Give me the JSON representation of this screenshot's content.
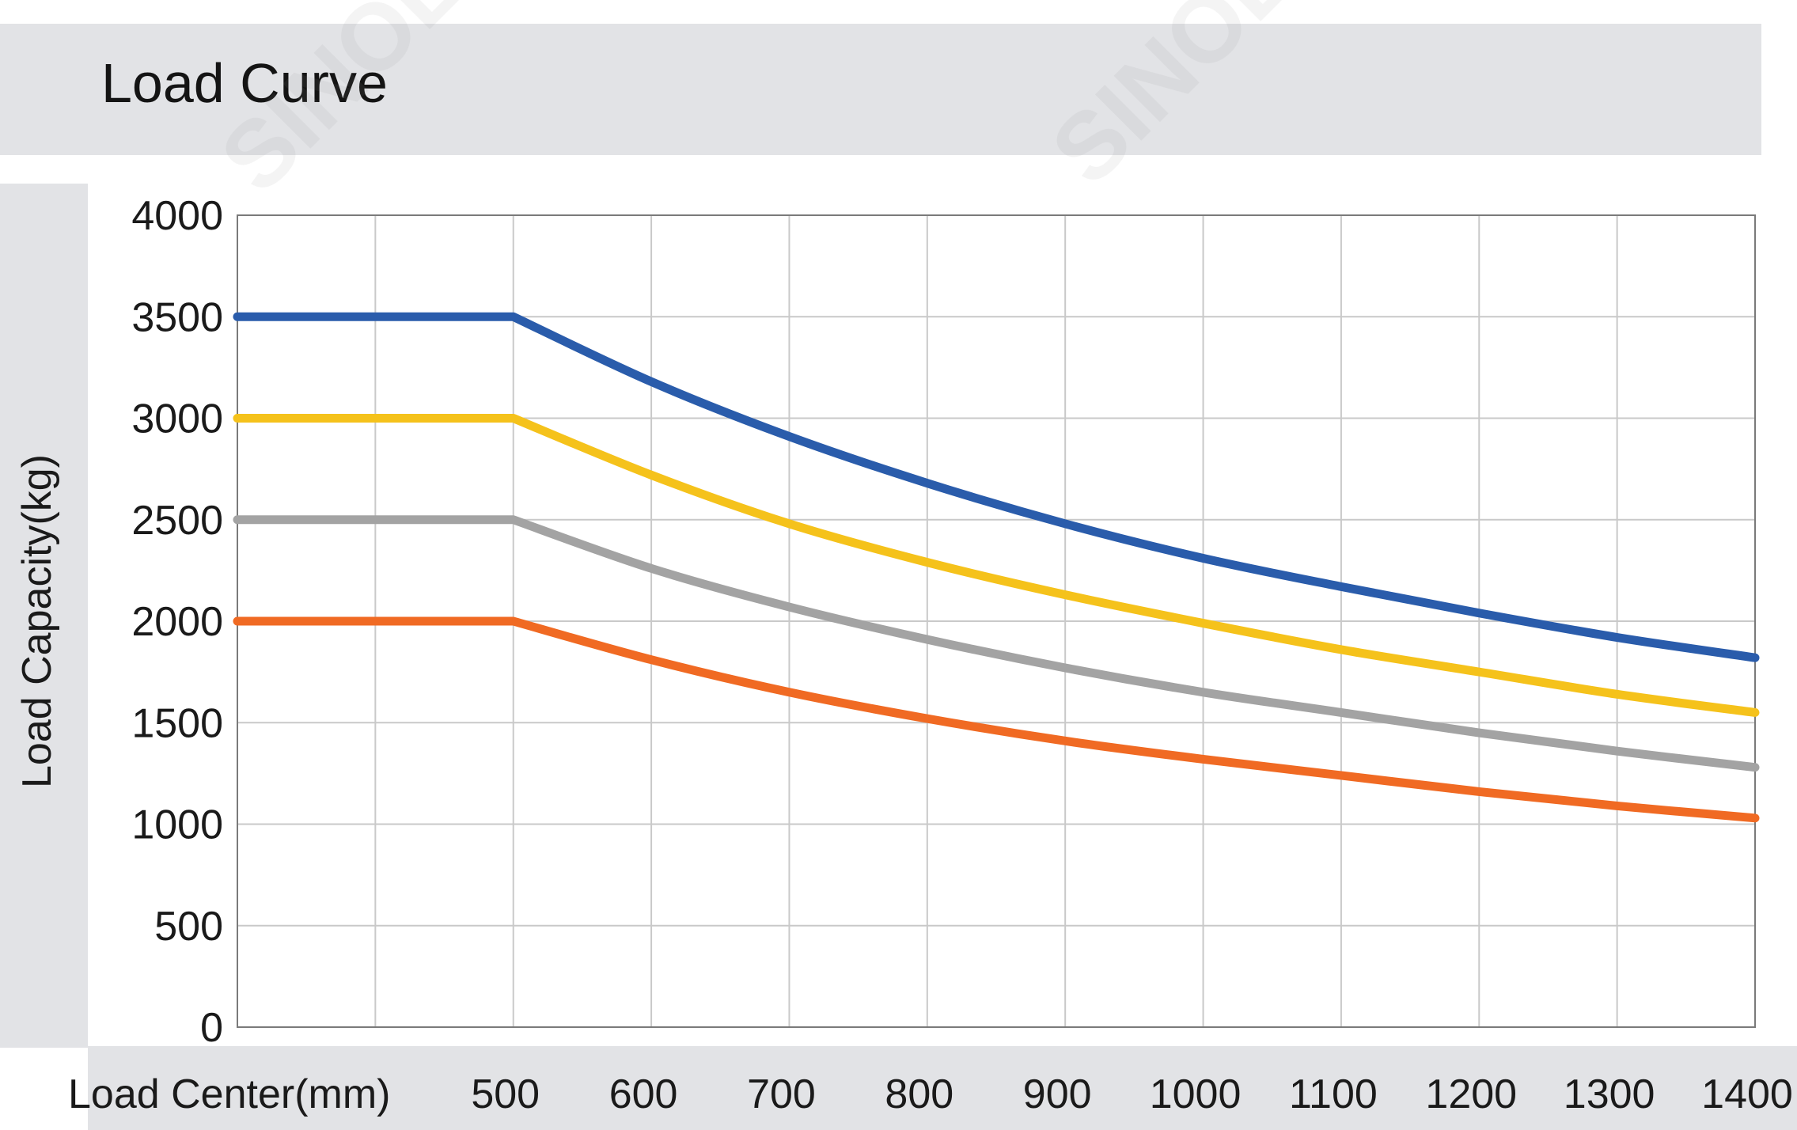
{
  "chart_data": {
    "type": "line",
    "title": "Load Curve",
    "xlabel": "Load Center(mm)",
    "ylabel": "Load Capacity(kg)",
    "ylim": [
      0,
      4000
    ],
    "xlim": [
      300,
      1400
    ],
    "grid": true,
    "x_ticks": [
      500,
      600,
      700,
      800,
      900,
      1000,
      1100,
      1200,
      1300,
      1400
    ],
    "y_ticks": [
      0,
      500,
      1000,
      1500,
      2000,
      2500,
      3000,
      3500,
      4000
    ],
    "x": [
      300,
      500,
      600,
      700,
      800,
      900,
      1000,
      1100,
      1200,
      1300,
      1400
    ],
    "series": [
      {
        "color": "#2a5cab",
        "values": [
          3500,
          3500,
          3180,
          2910,
          2680,
          2480,
          2310,
          2170,
          2040,
          1920,
          1820
        ]
      },
      {
        "color": "#f5c21b",
        "values": [
          3000,
          3000,
          2720,
          2480,
          2290,
          2130,
          1990,
          1860,
          1750,
          1640,
          1550
        ]
      },
      {
        "color": "#a3a3a3",
        "values": [
          2500,
          2500,
          2260,
          2070,
          1910,
          1770,
          1650,
          1550,
          1450,
          1360,
          1280
        ]
      },
      {
        "color": "#f06a23",
        "values": [
          2000,
          2000,
          1810,
          1650,
          1520,
          1410,
          1320,
          1240,
          1160,
          1090,
          1030
        ]
      }
    ]
  }
}
